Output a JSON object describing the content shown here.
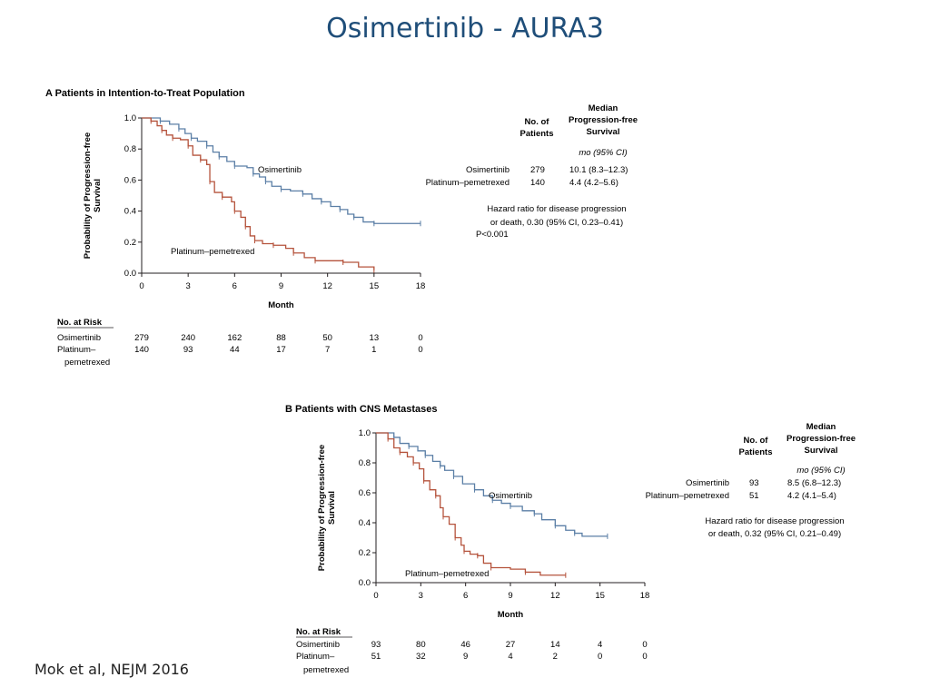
{
  "slide": {
    "title": "Osimertinib - AURA3",
    "citation": "Mok et al, NEJM 2016"
  },
  "chart_data": [
    {
      "type": "line",
      "panel_letter": "A",
      "title": "Patients in Intention-to-Treat Population",
      "xlabel": "Month",
      "ylabel_lines": [
        "Probability of Progression-free",
        "Survival"
      ],
      "xlim": [
        0,
        18
      ],
      "ylim": [
        0,
        1.0
      ],
      "x_ticks": [
        0,
        3,
        6,
        9,
        12,
        15,
        18
      ],
      "y_ticks": [
        "0.0",
        "0.2",
        "0.4",
        "0.6",
        "0.8",
        "1.0"
      ],
      "grid": false,
      "series": [
        {
          "name": "Osimertinib",
          "color": "#5b7fa6",
          "points": [
            [
              0,
              1.0
            ],
            [
              1.2,
              0.98
            ],
            [
              1.8,
              0.96
            ],
            [
              2.4,
              0.93
            ],
            [
              2.8,
              0.9
            ],
            [
              3.2,
              0.87
            ],
            [
              3.6,
              0.85
            ],
            [
              4.2,
              0.82
            ],
            [
              4.6,
              0.78
            ],
            [
              5.0,
              0.75
            ],
            [
              5.5,
              0.72
            ],
            [
              6.0,
              0.69
            ],
            [
              6.8,
              0.68
            ],
            [
              7.2,
              0.64
            ],
            [
              7.6,
              0.62
            ],
            [
              8.0,
              0.59
            ],
            [
              8.4,
              0.56
            ],
            [
              9.0,
              0.54
            ],
            [
              9.6,
              0.53
            ],
            [
              10.4,
              0.51
            ],
            [
              11.0,
              0.48
            ],
            [
              11.6,
              0.46
            ],
            [
              12.2,
              0.43
            ],
            [
              12.8,
              0.41
            ],
            [
              13.3,
              0.38
            ],
            [
              13.7,
              0.36
            ],
            [
              14.3,
              0.33
            ],
            [
              15.0,
              0.32
            ],
            [
              18.0,
              0.32
            ]
          ]
        },
        {
          "name": "Platinum–pemetrexed",
          "color": "#b5533c",
          "points": [
            [
              0,
              1.0
            ],
            [
              0.6,
              0.98
            ],
            [
              1.0,
              0.95
            ],
            [
              1.3,
              0.92
            ],
            [
              1.6,
              0.89
            ],
            [
              2.0,
              0.87
            ],
            [
              2.5,
              0.86
            ],
            [
              3.0,
              0.82
            ],
            [
              3.3,
              0.76
            ],
            [
              3.8,
              0.73
            ],
            [
              4.2,
              0.7
            ],
            [
              4.4,
              0.59
            ],
            [
              4.7,
              0.52
            ],
            [
              5.2,
              0.49
            ],
            [
              5.8,
              0.46
            ],
            [
              6.0,
              0.4
            ],
            [
              6.4,
              0.36
            ],
            [
              6.7,
              0.3
            ],
            [
              7.0,
              0.24
            ],
            [
              7.3,
              0.21
            ],
            [
              7.8,
              0.19
            ],
            [
              8.5,
              0.18
            ],
            [
              9.3,
              0.16
            ],
            [
              9.8,
              0.13
            ],
            [
              10.5,
              0.1
            ],
            [
              11.2,
              0.08
            ],
            [
              12.0,
              0.08
            ],
            [
              13.0,
              0.07
            ],
            [
              14.0,
              0.04
            ],
            [
              15.0,
              0.02
            ]
          ]
        }
      ],
      "curve_labels": [
        "Osimertinib",
        "Platinum–pemetrexed"
      ],
      "legend_table": {
        "header_col1": [
          "No. of",
          "Patients"
        ],
        "header_col2": [
          "Median",
          "Progression-free",
          "Survival"
        ],
        "units": "mo (95% CI)",
        "rows": [
          {
            "arm": "Osimertinib",
            "n": "279",
            "median": "10.1 (8.3–12.3)"
          },
          {
            "arm": "Platinum–pemetrexed",
            "n": "140",
            "median": "4.4 (4.2–5.6)"
          }
        ],
        "hazard_lines": [
          "Hazard ratio for disease progression",
          "or death, 0.30 (95% CI, 0.23–0.41)"
        ],
        "p_value": "P<0.001"
      },
      "at_risk": {
        "title": "No. at Risk",
        "rows": [
          {
            "label_lines": [
              "Osimertinib"
            ],
            "values": [
              "279",
              "240",
              "162",
              "88",
              "50",
              "13",
              "0"
            ]
          },
          {
            "label_lines": [
              "Platinum–",
              "pemetrexed"
            ],
            "values": [
              "140",
              "93",
              "44",
              "17",
              "7",
              "1",
              "0"
            ]
          }
        ]
      }
    },
    {
      "type": "line",
      "panel_letter": "B",
      "title": "Patients with CNS Metastases",
      "xlabel": "Month",
      "ylabel_lines": [
        "Probability of Progression-free",
        "Survival"
      ],
      "xlim": [
        0,
        18
      ],
      "ylim": [
        0,
        1.0
      ],
      "x_ticks": [
        0,
        3,
        6,
        9,
        12,
        15,
        18
      ],
      "y_ticks": [
        "0.0",
        "0.2",
        "0.4",
        "0.6",
        "0.8",
        "1.0"
      ],
      "grid": false,
      "series": [
        {
          "name": "Osimertinib",
          "color": "#5b7fa6",
          "points": [
            [
              0,
              1.0
            ],
            [
              1.2,
              0.97
            ],
            [
              1.6,
              0.93
            ],
            [
              2.2,
              0.91
            ],
            [
              2.8,
              0.88
            ],
            [
              3.3,
              0.85
            ],
            [
              3.8,
              0.81
            ],
            [
              4.3,
              0.78
            ],
            [
              4.6,
              0.75
            ],
            [
              5.2,
              0.71
            ],
            [
              5.8,
              0.66
            ],
            [
              6.6,
              0.62
            ],
            [
              7.2,
              0.58
            ],
            [
              7.8,
              0.55
            ],
            [
              8.4,
              0.53
            ],
            [
              9.0,
              0.51
            ],
            [
              9.8,
              0.48
            ],
            [
              10.6,
              0.46
            ],
            [
              11.1,
              0.42
            ],
            [
              12.0,
              0.38
            ],
            [
              12.7,
              0.35
            ],
            [
              13.3,
              0.33
            ],
            [
              13.8,
              0.31
            ],
            [
              15.5,
              0.31
            ]
          ]
        },
        {
          "name": "Platinum–pemetrexed",
          "color": "#b5533c",
          "points": [
            [
              0,
              1.0
            ],
            [
              0.8,
              0.96
            ],
            [
              1.2,
              0.9
            ],
            [
              1.6,
              0.87
            ],
            [
              2.1,
              0.84
            ],
            [
              2.5,
              0.8
            ],
            [
              2.9,
              0.76
            ],
            [
              3.2,
              0.68
            ],
            [
              3.6,
              0.62
            ],
            [
              4.0,
              0.58
            ],
            [
              4.3,
              0.5
            ],
            [
              4.5,
              0.44
            ],
            [
              4.9,
              0.39
            ],
            [
              5.3,
              0.3
            ],
            [
              5.7,
              0.25
            ],
            [
              5.9,
              0.21
            ],
            [
              6.3,
              0.19
            ],
            [
              6.8,
              0.18
            ],
            [
              7.2,
              0.13
            ],
            [
              7.7,
              0.1
            ],
            [
              9.0,
              0.09
            ],
            [
              10.0,
              0.07
            ],
            [
              11.0,
              0.05
            ],
            [
              12.7,
              0.05
            ]
          ]
        }
      ],
      "curve_labels": [
        "Osimertinib",
        "Platinum–pemetrexed"
      ],
      "legend_table": {
        "header_col1": [
          "No. of",
          "Patients"
        ],
        "header_col2": [
          "Median",
          "Progression-free",
          "Survival"
        ],
        "units": "mo (95% CI)",
        "rows": [
          {
            "arm": "Osimertinib",
            "n": "93",
            "median": "8.5 (6.8–12.3)"
          },
          {
            "arm": "Platinum–pemetrexed",
            "n": "51",
            "median": "4.2 (4.1–5.4)"
          }
        ],
        "hazard_lines": [
          "Hazard ratio for disease progression",
          "or death, 0.32 (95% CI, 0.21–0.49)"
        ],
        "p_value": ""
      },
      "at_risk": {
        "title": "No. at Risk",
        "rows": [
          {
            "label_lines": [
              "Osimertinib"
            ],
            "values": [
              "93",
              "80",
              "46",
              "27",
              "14",
              "4",
              "0"
            ]
          },
          {
            "label_lines": [
              "Platinum–",
              "pemetrexed"
            ],
            "values": [
              "51",
              "32",
              "9",
              "4",
              "2",
              "0",
              "0"
            ]
          }
        ]
      }
    }
  ]
}
